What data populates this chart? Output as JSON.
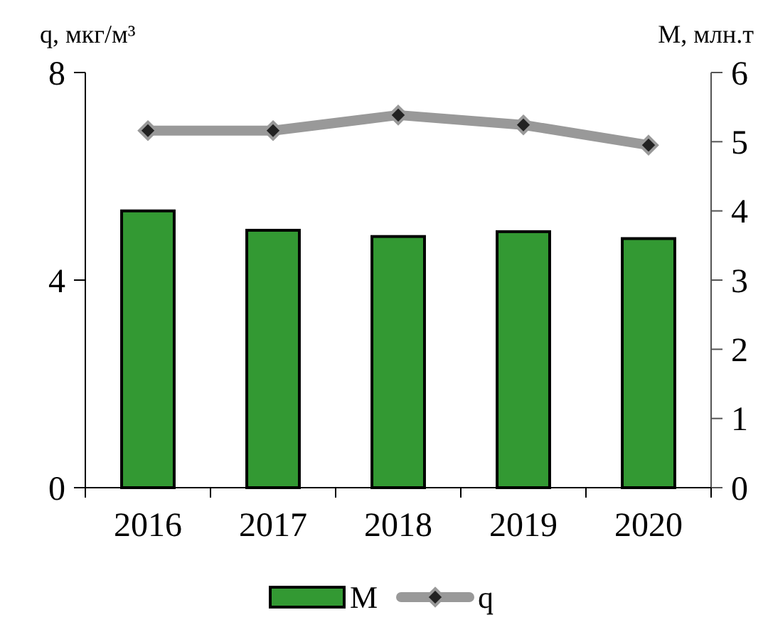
{
  "chart_data": {
    "type": "bar",
    "ylabel": "q, мкг/м³",
    "y2label": "M, млн.т",
    "categories": [
      "2016",
      "2017",
      "2018",
      "2019",
      "2020"
    ],
    "series": [
      {
        "name": "M",
        "axis": "y2",
        "color": "#339933",
        "values": [
          4.0,
          3.72,
          3.63,
          3.7,
          3.6
        ]
      },
      {
        "name": "q",
        "type": "line",
        "axis": "y",
        "color": "#999999",
        "marker": "diamond",
        "values": [
          6.88,
          6.88,
          7.18,
          6.99,
          6.6
        ]
      }
    ],
    "ylim": [
      0,
      8
    ],
    "yticks": [
      0,
      4,
      8
    ],
    "y2lim": [
      0,
      6
    ],
    "y2ticks": [
      0,
      1,
      2,
      3,
      4,
      5,
      6
    ],
    "legend": "bottom"
  }
}
